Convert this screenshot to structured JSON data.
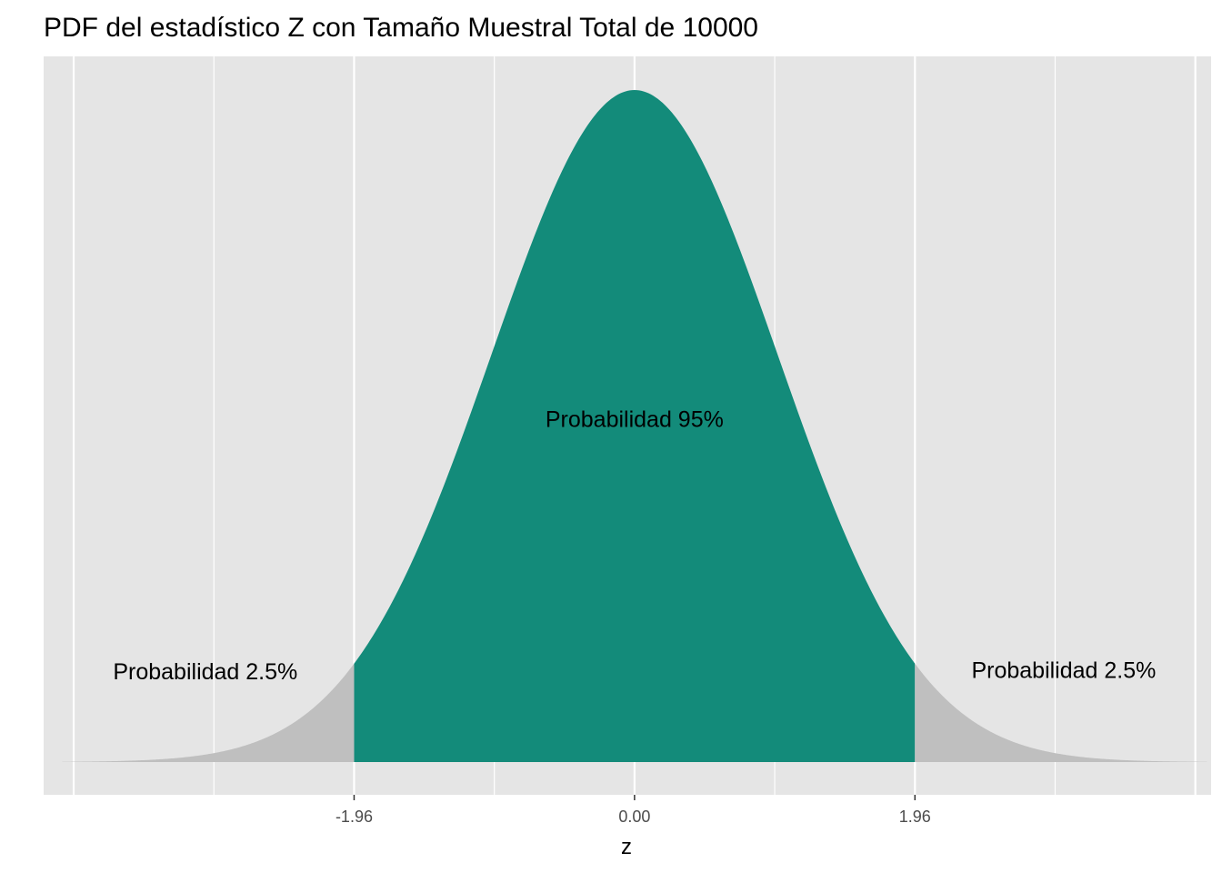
{
  "chart_data": {
    "type": "area",
    "title": "PDF del estadístico Z con Tamaño Muestral Total de 10000",
    "xlabel": "z",
    "ylabel": "",
    "xlim": [
      -4.0,
      4.0
    ],
    "ylim": [
      0,
      0.42
    ],
    "curve": "standard-normal-pdf",
    "x_ticks": [
      -1.96,
      0.0,
      1.96
    ],
    "x_tick_labels": [
      "-1.96",
      "0.00",
      "1.96"
    ],
    "critical_values": [
      -1.96,
      1.96
    ],
    "regions": [
      {
        "from": -4.0,
        "to": -1.96,
        "probability": 0.025,
        "color": "#bfbfbf"
      },
      {
        "from": -1.96,
        "to": 1.96,
        "probability": 0.95,
        "color": "#138b7a"
      },
      {
        "from": 1.96,
        "to": 4.0,
        "probability": 0.025,
        "color": "#bfbfbf"
      }
    ],
    "annotations": [
      {
        "text": "Probabilidad 2.5%",
        "x": -3.0,
        "y": 0.049
      },
      {
        "text": "Probabilidad 95%",
        "x": 0.0,
        "y": 0.199
      },
      {
        "text": "Probabilidad 2.5%",
        "x": 3.0,
        "y": 0.05
      }
    ],
    "grid": true,
    "panel_background": "#e5e5e5",
    "grid_color": "#ffffff",
    "legend": "none"
  }
}
